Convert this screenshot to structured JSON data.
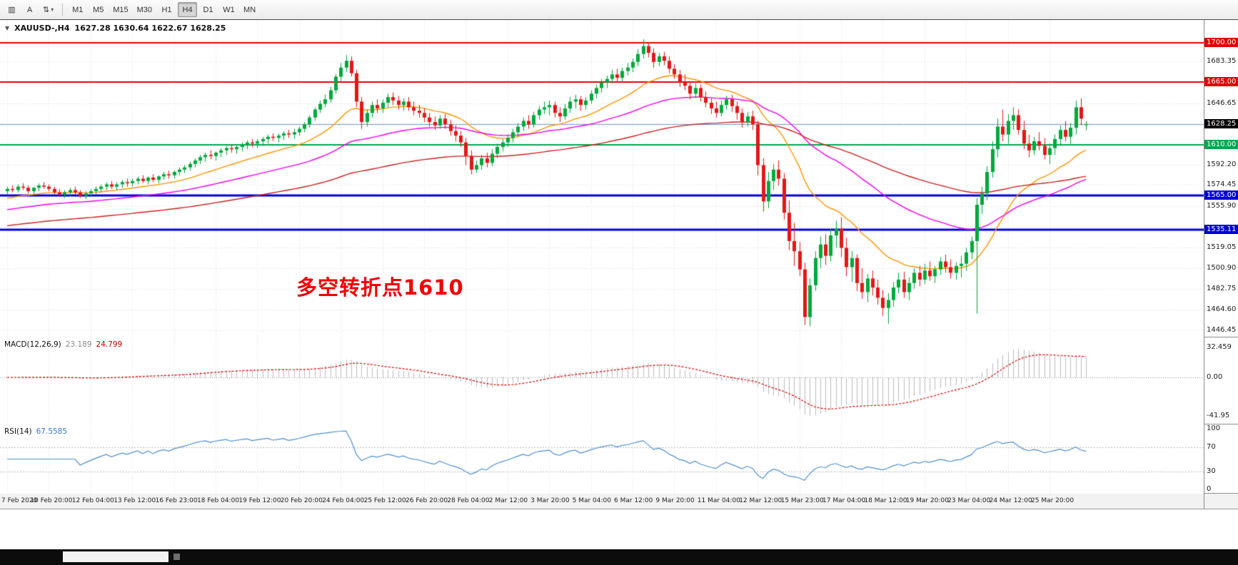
{
  "toolbar": {
    "left_buttons": [
      {
        "glyph": "▥"
      },
      {
        "glyph": "A"
      },
      {
        "glyph": "⇅"
      }
    ],
    "dropdown_caret": "▾",
    "timeframes": [
      "M1",
      "M5",
      "M15",
      "M30",
      "H1",
      "H4",
      "D1",
      "W1",
      "MN"
    ],
    "active_timeframe": "H4"
  },
  "main_chart": {
    "collapse_arrow": "▼",
    "symbol_title": "XAUUSD-,H4",
    "ohlc_text": "1627.28 1630.64 1622.67 1628.25",
    "annotation": "多空转折点1610",
    "annotation_color": "#f00000",
    "price_axis": {
      "min": 1440,
      "max": 1720,
      "labels": [
        "1683.35",
        "1646.65",
        "1592.20",
        "1574.45",
        "1555.90",
        "1519.05",
        "1500.90",
        "1482.75",
        "1464.60",
        "1446.45"
      ],
      "grid": [
        1700.55,
        1683.35,
        1665.0,
        1646.65,
        1628.45,
        1610.0,
        1592.2,
        1574.45,
        1555.9,
        1537.55,
        1519.05,
        1500.9,
        1482.75,
        1464.6,
        1446.45
      ]
    },
    "levels": [
      {
        "value": 1700.0,
        "label": "1700.00",
        "color": "#e00000",
        "width": 2
      },
      {
        "value": 1665.0,
        "label": "1665.00",
        "color": "#e00000",
        "width": 2
      },
      {
        "value": 1610.0,
        "label": "1610.00",
        "color": "#00a651",
        "width": 2
      },
      {
        "value": 1565.0,
        "label": "1565.00",
        "color": "#0000d8",
        "width": 3
      },
      {
        "value": 1535.11,
        "label": "1535.11",
        "color": "#0000d8",
        "width": 3
      }
    ],
    "current_price": {
      "value": 1628.25,
      "label": "1628.25",
      "line_color": "#7b9cc9",
      "tag_bg": "#000000"
    }
  },
  "macd": {
    "label": "MACD(12,26,9)",
    "main_value": "23.189",
    "signal_value": "24.799",
    "axis_labels": [
      "32.459",
      "0.00",
      "-41.95"
    ],
    "axis_values": [
      32.459,
      0,
      -41.95
    ],
    "histogram_color": "#bcbcbc",
    "signal_color": "#d40000"
  },
  "rsi": {
    "label": "RSI(14)",
    "value_text": "67.5585",
    "period": 14,
    "axis_labels": [
      "100",
      "70",
      "30",
      "0"
    ],
    "axis_values": [
      100,
      70,
      30,
      0
    ],
    "levels": [
      70,
      30
    ],
    "line_color": "#4f8fce"
  },
  "chart_data": {
    "type": "candlestick",
    "symbol": "XAUUSD",
    "timeframe": "H4",
    "ylim": [
      1440,
      1720
    ],
    "bars_per_label": 8,
    "time_labels": [
      "7 Feb 2020",
      "10 Feb 20:00",
      "12 Feb 04:00",
      "13 Feb 12:00",
      "16 Feb 23:00",
      "18 Feb 04:00",
      "19 Feb 12:00",
      "20 Feb 20:00",
      "24 Feb 04:00",
      "25 Feb 12:00",
      "26 Feb 20:00",
      "28 Feb 04:00",
      "2 Mar 12:00",
      "3 Mar 20:00",
      "5 Mar 04:00",
      "6 Mar 12:00",
      "9 Mar 20:00",
      "11 Mar 04:00",
      "12 Mar 12:00",
      "15 Mar 23:00",
      "17 Mar 04:00",
      "18 Mar 12:00",
      "19 Mar 20:00",
      "23 Mar 04:00",
      "24 Mar 12:00",
      "25 Mar 20:00"
    ],
    "colors": {
      "up": "#00a83c",
      "down": "#e21818"
    },
    "moving_averages": [
      {
        "name": "fast",
        "period": 21,
        "color": "#ff9500",
        "seed": 1562
      },
      {
        "name": "medium",
        "period": 55,
        "color": "#f000f0",
        "seed": 1552
      },
      {
        "name": "slow",
        "period": 120,
        "color": "#cc2020",
        "seed": 1538
      }
    ],
    "candles": [
      [
        1569,
        1573,
        1566,
        1571
      ],
      [
        1571,
        1574,
        1568,
        1570
      ],
      [
        1570,
        1575,
        1568,
        1573
      ],
      [
        1573,
        1576,
        1570,
        1572
      ],
      [
        1572,
        1574,
        1567,
        1569
      ],
      [
        1569,
        1573,
        1566,
        1572
      ],
      [
        1572,
        1576,
        1569,
        1574
      ],
      [
        1574,
        1577,
        1571,
        1573
      ],
      [
        1573,
        1575,
        1569,
        1571
      ],
      [
        1571,
        1573,
        1566,
        1568
      ],
      [
        1568,
        1571,
        1564,
        1566
      ],
      [
        1566,
        1570,
        1563,
        1568
      ],
      [
        1568,
        1572,
        1565,
        1570
      ],
      [
        1570,
        1573,
        1566,
        1568
      ],
      [
        1568,
        1570,
        1563,
        1565
      ],
      [
        1565,
        1569,
        1562,
        1567
      ],
      [
        1567,
        1571,
        1564,
        1569
      ],
      [
        1569,
        1573,
        1566,
        1571
      ],
      [
        1571,
        1575,
        1568,
        1573
      ],
      [
        1573,
        1577,
        1570,
        1575
      ],
      [
        1575,
        1578,
        1571,
        1573
      ],
      [
        1573,
        1577,
        1570,
        1575
      ],
      [
        1575,
        1579,
        1572,
        1577
      ],
      [
        1577,
        1580,
        1573,
        1576
      ],
      [
        1576,
        1580,
        1573,
        1578
      ],
      [
        1578,
        1582,
        1575,
        1580
      ],
      [
        1580,
        1583,
        1576,
        1578
      ],
      [
        1578,
        1582,
        1575,
        1581
      ],
      [
        1581,
        1584,
        1577,
        1579
      ],
      [
        1579,
        1583,
        1576,
        1582
      ],
      [
        1582,
        1586,
        1579,
        1584
      ],
      [
        1584,
        1587,
        1580,
        1583
      ],
      [
        1583,
        1587,
        1580,
        1586
      ],
      [
        1586,
        1590,
        1583,
        1588
      ],
      [
        1588,
        1592,
        1585,
        1590
      ],
      [
        1590,
        1595,
        1587,
        1593
      ],
      [
        1593,
        1598,
        1590,
        1596
      ],
      [
        1596,
        1601,
        1593,
        1599
      ],
      [
        1599,
        1603,
        1595,
        1601
      ],
      [
        1601,
        1605,
        1597,
        1600
      ],
      [
        1600,
        1604,
        1596,
        1603
      ],
      [
        1603,
        1607,
        1599,
        1605
      ],
      [
        1605,
        1609,
        1601,
        1607
      ],
      [
        1607,
        1610,
        1603,
        1606
      ],
      [
        1606,
        1610,
        1602,
        1608
      ],
      [
        1608,
        1612,
        1604,
        1610
      ],
      [
        1610,
        1614,
        1606,
        1612
      ],
      [
        1612,
        1615,
        1608,
        1611
      ],
      [
        1611,
        1615,
        1607,
        1613
      ],
      [
        1613,
        1617,
        1609,
        1615
      ],
      [
        1615,
        1619,
        1611,
        1617
      ],
      [
        1617,
        1620,
        1613,
        1616
      ],
      [
        1616,
        1620,
        1612,
        1618
      ],
      [
        1618,
        1622,
        1614,
        1620
      ],
      [
        1620,
        1623,
        1616,
        1619
      ],
      [
        1619,
        1624,
        1615,
        1621
      ],
      [
        1621,
        1626,
        1618,
        1624
      ],
      [
        1624,
        1630,
        1621,
        1628
      ],
      [
        1628,
        1636,
        1625,
        1634
      ],
      [
        1634,
        1643,
        1631,
        1641
      ],
      [
        1641,
        1649,
        1638,
        1646
      ],
      [
        1646,
        1654,
        1643,
        1650
      ],
      [
        1650,
        1661,
        1647,
        1658
      ],
      [
        1658,
        1672,
        1655,
        1670
      ],
      [
        1670,
        1682,
        1666,
        1678
      ],
      [
        1678,
        1689,
        1674,
        1684
      ],
      [
        1684,
        1688,
        1670,
        1673
      ],
      [
        1673,
        1676,
        1643,
        1648
      ],
      [
        1648,
        1652,
        1624,
        1630
      ],
      [
        1630,
        1641,
        1626,
        1638
      ],
      [
        1638,
        1648,
        1634,
        1645
      ],
      [
        1645,
        1650,
        1638,
        1642
      ],
      [
        1642,
        1650,
        1638,
        1647
      ],
      [
        1647,
        1655,
        1643,
        1652
      ],
      [
        1652,
        1656,
        1645,
        1649
      ],
      [
        1649,
        1653,
        1641,
        1645
      ],
      [
        1645,
        1651,
        1640,
        1648
      ],
      [
        1648,
        1652,
        1640,
        1643
      ],
      [
        1643,
        1648,
        1636,
        1640
      ],
      [
        1640,
        1645,
        1634,
        1638
      ],
      [
        1638,
        1642,
        1630,
        1634
      ],
      [
        1634,
        1638,
        1626,
        1630
      ],
      [
        1630,
        1635,
        1623,
        1627
      ],
      [
        1627,
        1636,
        1624,
        1633
      ],
      [
        1633,
        1637,
        1624,
        1628
      ],
      [
        1628,
        1632,
        1618,
        1622
      ],
      [
        1622,
        1627,
        1613,
        1618
      ],
      [
        1618,
        1622,
        1608,
        1612
      ],
      [
        1612,
        1616,
        1592,
        1600
      ],
      [
        1600,
        1605,
        1584,
        1588
      ],
      [
        1588,
        1596,
        1585,
        1592
      ],
      [
        1592,
        1601,
        1588,
        1598
      ],
      [
        1598,
        1603,
        1590,
        1594
      ],
      [
        1594,
        1606,
        1591,
        1602
      ],
      [
        1602,
        1611,
        1598,
        1608
      ],
      [
        1608,
        1615,
        1604,
        1612
      ],
      [
        1612,
        1619,
        1608,
        1616
      ],
      [
        1616,
        1624,
        1612,
        1621
      ],
      [
        1621,
        1629,
        1617,
        1626
      ],
      [
        1626,
        1634,
        1622,
        1631
      ],
      [
        1631,
        1636,
        1624,
        1628
      ],
      [
        1628,
        1639,
        1625,
        1636
      ],
      [
        1636,
        1644,
        1632,
        1641
      ],
      [
        1641,
        1648,
        1637,
        1643
      ],
      [
        1643,
        1649,
        1636,
        1645
      ],
      [
        1645,
        1648,
        1634,
        1638
      ],
      [
        1638,
        1643,
        1630,
        1635
      ],
      [
        1635,
        1646,
        1632,
        1642
      ],
      [
        1642,
        1652,
        1638,
        1648
      ],
      [
        1648,
        1654,
        1642,
        1650
      ],
      [
        1650,
        1653,
        1640,
        1645
      ],
      [
        1645,
        1652,
        1641,
        1649
      ],
      [
        1649,
        1658,
        1646,
        1655
      ],
      [
        1655,
        1663,
        1651,
        1660
      ],
      [
        1660,
        1668,
        1656,
        1665
      ],
      [
        1665,
        1671,
        1660,
        1668
      ],
      [
        1668,
        1676,
        1664,
        1672
      ],
      [
        1672,
        1677,
        1665,
        1669
      ],
      [
        1669,
        1678,
        1666,
        1675
      ],
      [
        1675,
        1682,
        1671,
        1678
      ],
      [
        1678,
        1686,
        1674,
        1683
      ],
      [
        1683,
        1694,
        1679,
        1690
      ],
      [
        1690,
        1703,
        1686,
        1697
      ],
      [
        1697,
        1700,
        1687,
        1691
      ],
      [
        1691,
        1695,
        1678,
        1683
      ],
      [
        1683,
        1691,
        1679,
        1688
      ],
      [
        1688,
        1692,
        1680,
        1684
      ],
      [
        1684,
        1688,
        1673,
        1677
      ],
      [
        1677,
        1681,
        1668,
        1672
      ],
      [
        1672,
        1676,
        1661,
        1665
      ],
      [
        1665,
        1672,
        1658,
        1662
      ],
      [
        1662,
        1666,
        1650,
        1655
      ],
      [
        1655,
        1664,
        1651,
        1660
      ],
      [
        1660,
        1663,
        1648,
        1652
      ],
      [
        1652,
        1657,
        1643,
        1647
      ],
      [
        1647,
        1651,
        1637,
        1642
      ],
      [
        1642,
        1648,
        1634,
        1638
      ],
      [
        1638,
        1649,
        1635,
        1645
      ],
      [
        1645,
        1653,
        1641,
        1650
      ],
      [
        1650,
        1654,
        1639,
        1644
      ],
      [
        1644,
        1648,
        1632,
        1638
      ],
      [
        1638,
        1642,
        1625,
        1630
      ],
      [
        1630,
        1639,
        1626,
        1635
      ],
      [
        1635,
        1640,
        1623,
        1628
      ],
      [
        1628,
        1631,
        1583,
        1592
      ],
      [
        1592,
        1598,
        1551,
        1560
      ],
      [
        1560,
        1586,
        1554,
        1578
      ],
      [
        1578,
        1593,
        1570,
        1588
      ],
      [
        1588,
        1596,
        1574,
        1580
      ],
      [
        1580,
        1585,
        1544,
        1550
      ],
      [
        1550,
        1561,
        1517,
        1525
      ],
      [
        1525,
        1541,
        1503,
        1516
      ],
      [
        1516,
        1524,
        1494,
        1500
      ],
      [
        1500,
        1506,
        1451,
        1458
      ],
      [
        1458,
        1492,
        1450,
        1486
      ],
      [
        1486,
        1516,
        1481,
        1510
      ],
      [
        1510,
        1529,
        1501,
        1522
      ],
      [
        1522,
        1531,
        1504,
        1512
      ],
      [
        1512,
        1536,
        1507,
        1530
      ],
      [
        1530,
        1543,
        1519,
        1536
      ],
      [
        1536,
        1546,
        1511,
        1519
      ],
      [
        1519,
        1528,
        1494,
        1502
      ],
      [
        1502,
        1516,
        1489,
        1510
      ],
      [
        1510,
        1513,
        1481,
        1488
      ],
      [
        1488,
        1501,
        1474,
        1480
      ],
      [
        1480,
        1496,
        1471,
        1492
      ],
      [
        1492,
        1499,
        1477,
        1484
      ],
      [
        1484,
        1491,
        1469,
        1475
      ],
      [
        1475,
        1482,
        1459,
        1466
      ],
      [
        1466,
        1479,
        1452,
        1473
      ],
      [
        1473,
        1489,
        1467,
        1484
      ],
      [
        1484,
        1497,
        1479,
        1491
      ],
      [
        1491,
        1498,
        1475,
        1480
      ],
      [
        1480,
        1493,
        1473,
        1488
      ],
      [
        1488,
        1501,
        1483,
        1497
      ],
      [
        1497,
        1503,
        1485,
        1491
      ],
      [
        1491,
        1505,
        1487,
        1499
      ],
      [
        1499,
        1507,
        1490,
        1494
      ],
      [
        1494,
        1503,
        1488,
        1500
      ],
      [
        1500,
        1511,
        1495,
        1507
      ],
      [
        1507,
        1513,
        1497,
        1502
      ],
      [
        1502,
        1509,
        1492,
        1497
      ],
      [
        1497,
        1506,
        1491,
        1503
      ],
      [
        1503,
        1512,
        1493,
        1505
      ],
      [
        1505,
        1519,
        1499,
        1515
      ],
      [
        1515,
        1529,
        1509,
        1525
      ],
      [
        1525,
        1563,
        1461,
        1557
      ],
      [
        1557,
        1573,
        1549,
        1567
      ],
      [
        1567,
        1591,
        1561,
        1586
      ],
      [
        1586,
        1613,
        1581,
        1606
      ],
      [
        1606,
        1633,
        1599,
        1626
      ],
      [
        1626,
        1641,
        1613,
        1619
      ],
      [
        1619,
        1637,
        1611,
        1631
      ],
      [
        1631,
        1643,
        1623,
        1636
      ],
      [
        1636,
        1641,
        1619,
        1623
      ],
      [
        1623,
        1631,
        1606,
        1611
      ],
      [
        1611,
        1619,
        1599,
        1605
      ],
      [
        1605,
        1617,
        1601,
        1613
      ],
      [
        1613,
        1621,
        1605,
        1609
      ],
      [
        1609,
        1616,
        1597,
        1601
      ],
      [
        1601,
        1611,
        1593,
        1607
      ],
      [
        1607,
        1619,
        1601,
        1615
      ],
      [
        1615,
        1627,
        1609,
        1623
      ],
      [
        1623,
        1631,
        1613,
        1617
      ],
      [
        1617,
        1629,
        1611,
        1625
      ],
      [
        1625,
        1649,
        1619,
        1643
      ],
      [
        1643,
        1651,
        1627,
        1633
      ],
      [
        1627.28,
        1630.64,
        1622.67,
        1628.25
      ]
    ]
  }
}
